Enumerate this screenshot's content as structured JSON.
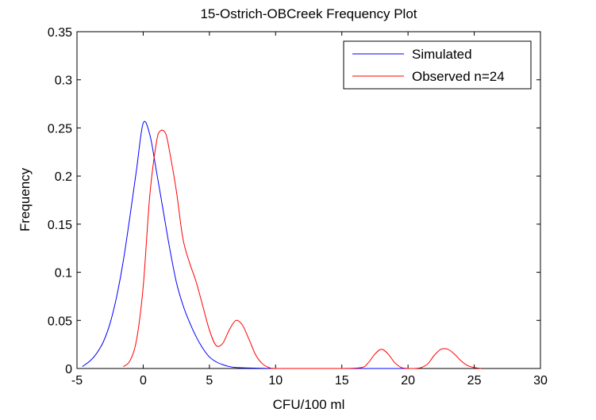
{
  "chart_data": {
    "type": "line",
    "title": "15-Ostrich-OBCreek Frequency Plot",
    "xlabel": "CFU/100 ml",
    "ylabel": "Frequency",
    "xlim": [
      -5,
      30
    ],
    "ylim": [
      0,
      0.35
    ],
    "xticks": [
      "-5",
      "0",
      "5",
      "10",
      "15",
      "20",
      "25",
      "30"
    ],
    "yticks": [
      "0",
      "0.05",
      "0.1",
      "0.15",
      "0.2",
      "0.25",
      "0.3",
      "0.35"
    ],
    "grid": false,
    "legend_position": "top-right",
    "series": [
      {
        "name": "Simulated",
        "color": "#0000ff",
        "x": [
          -4.6,
          -4.0,
          -3.5,
          -3.0,
          -2.5,
          -2.0,
          -1.5,
          -1.0,
          -0.5,
          0.0,
          0.5,
          1.0,
          1.5,
          2.0,
          2.5,
          3.0,
          3.5,
          4.0,
          4.5,
          5.0,
          5.5,
          6.0,
          6.5,
          7.0,
          8.0,
          10.0,
          12.0,
          15.0,
          18.0,
          20.0
        ],
        "y": [
          0.002,
          0.008,
          0.016,
          0.028,
          0.047,
          0.075,
          0.112,
          0.158,
          0.207,
          0.255,
          0.243,
          0.205,
          0.165,
          0.125,
          0.09,
          0.066,
          0.048,
          0.033,
          0.021,
          0.012,
          0.007,
          0.004,
          0.002,
          0.001,
          0.0005,
          0.0,
          0.0,
          0.0,
          0.0,
          0.0
        ]
      },
      {
        "name": "Observed n=24",
        "color": "#ff0000",
        "x": [
          -1.5,
          -1.0,
          -0.5,
          0.0,
          0.5,
          1.0,
          1.3,
          1.7,
          2.0,
          2.5,
          3.0,
          3.5,
          4.0,
          4.5,
          5.0,
          5.5,
          6.0,
          6.5,
          7.0,
          7.5,
          8.0,
          8.5,
          9.0,
          9.5,
          10.0,
          12.0,
          15.0,
          16.5,
          17.0,
          17.5,
          18.0,
          18.5,
          19.0,
          19.5,
          20.0,
          20.5,
          21.0,
          21.5,
          22.0,
          22.5,
          23.0,
          23.5,
          24.0,
          24.5,
          25.0,
          25.5
        ],
        "y": [
          0.002,
          0.008,
          0.03,
          0.085,
          0.18,
          0.235,
          0.247,
          0.244,
          0.225,
          0.185,
          0.135,
          0.11,
          0.09,
          0.065,
          0.04,
          0.024,
          0.026,
          0.04,
          0.05,
          0.045,
          0.03,
          0.014,
          0.005,
          0.001,
          0.0,
          0.0,
          0.0,
          0.001,
          0.006,
          0.015,
          0.02,
          0.015,
          0.006,
          0.001,
          0.0,
          0.0,
          0.001,
          0.005,
          0.014,
          0.02,
          0.02,
          0.015,
          0.008,
          0.003,
          0.001,
          0.0
        ]
      }
    ]
  }
}
